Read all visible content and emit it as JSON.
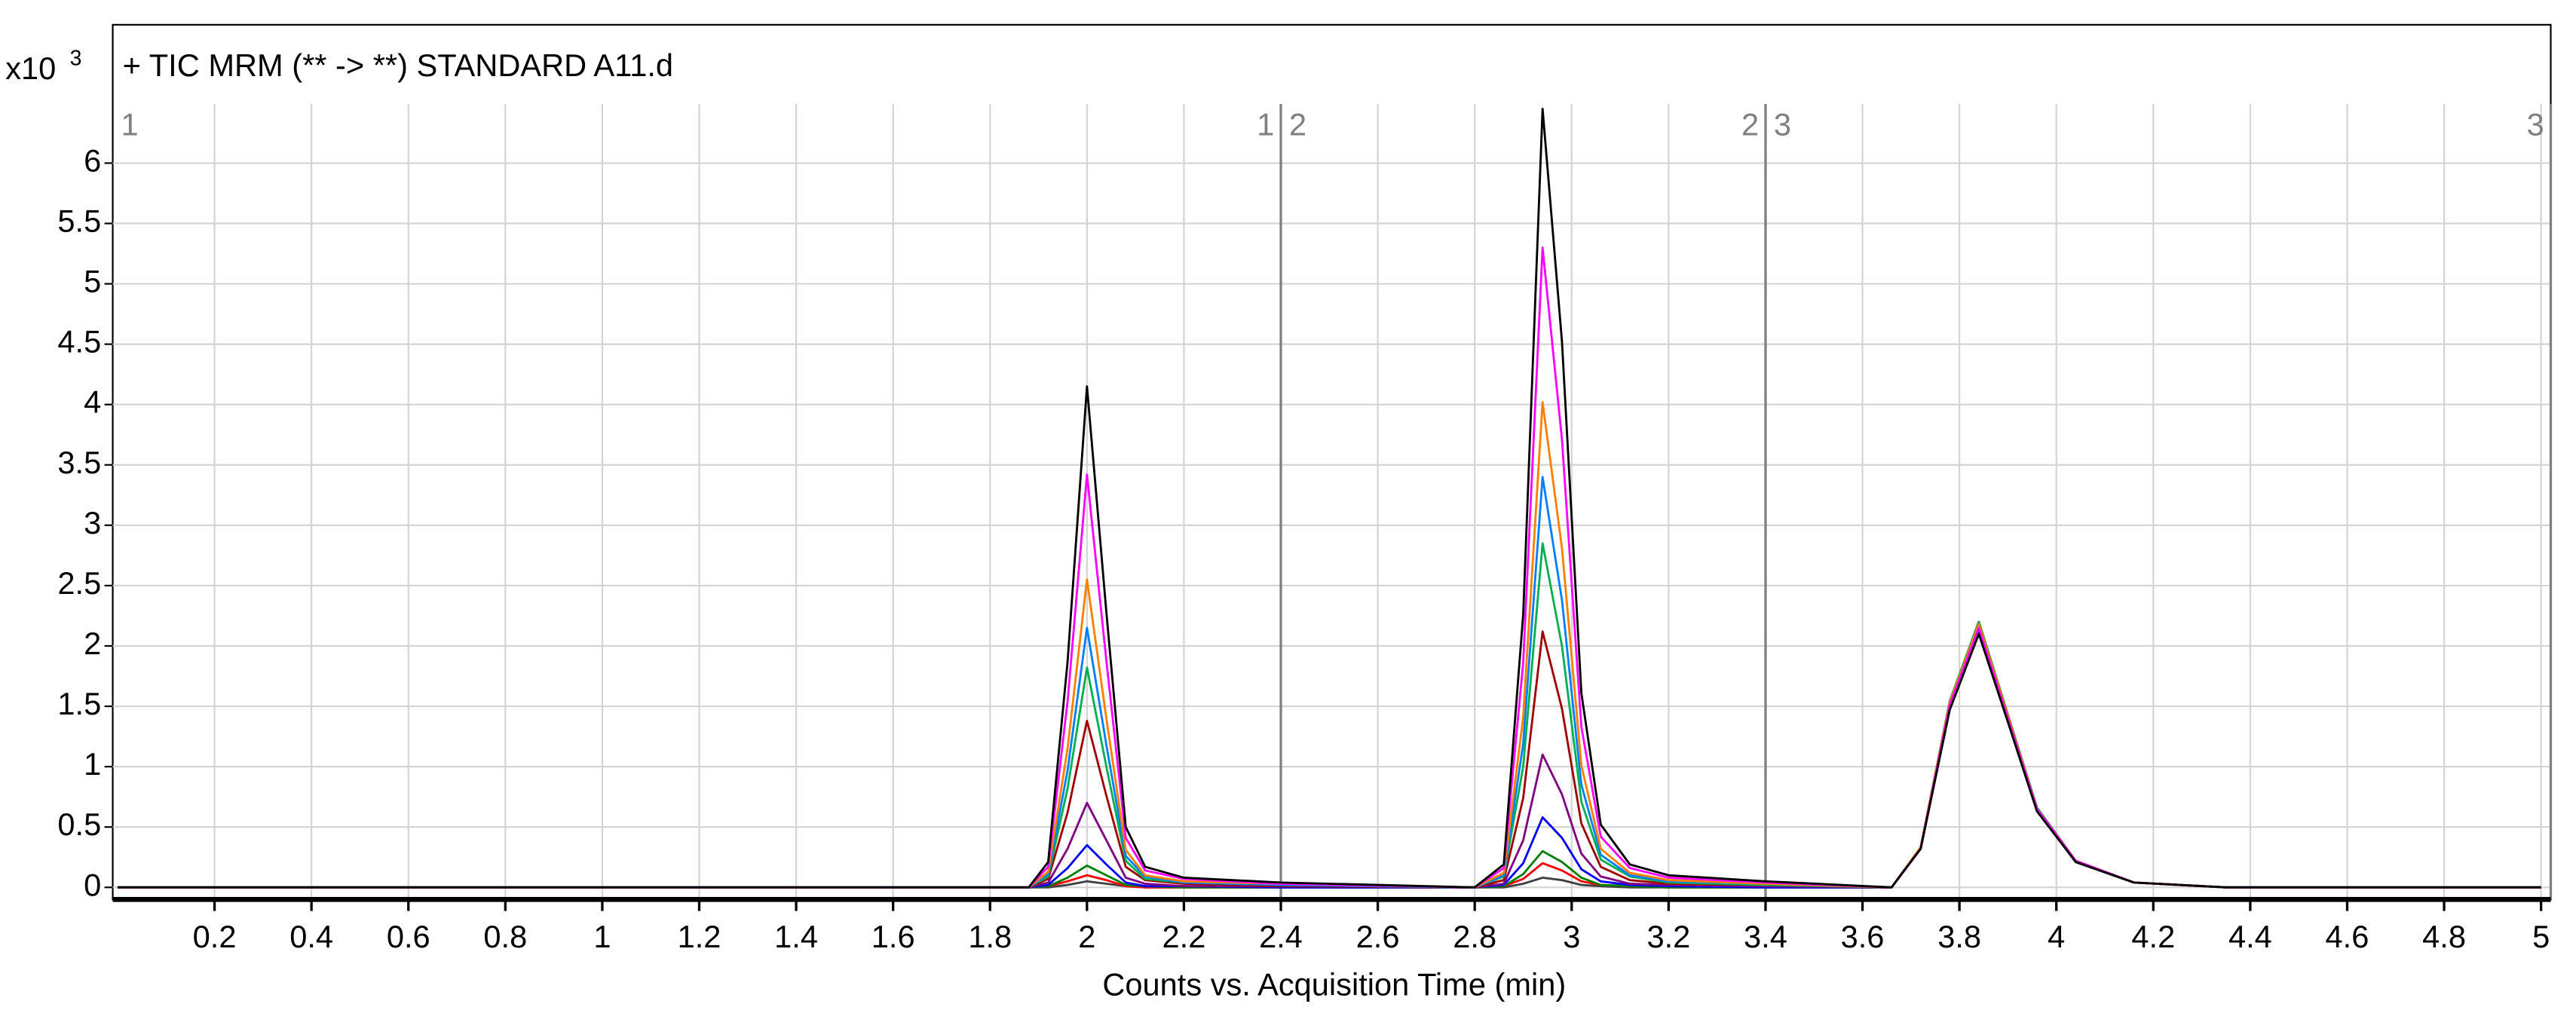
{
  "chart_data": {
    "type": "line",
    "title": "+ TIC MRM (** -> **) STANDARD A11.d",
    "y_scale_label": "x10",
    "y_scale_exponent": "3",
    "x_label": "Counts vs. Acquisition Time (min)",
    "xlim": [
      -0.01,
      5.02
    ],
    "ylim": [
      -0.1,
      6.49
    ],
    "xticks": [
      0.2,
      0.4,
      0.6,
      0.8,
      1,
      1.2,
      1.4,
      1.6,
      1.8,
      2,
      2.2,
      2.4,
      2.6,
      2.8,
      3,
      3.2,
      3.4,
      3.6,
      3.8,
      4,
      4.2,
      4.4,
      4.6,
      4.8,
      5
    ],
    "yticks": [
      0,
      0.5,
      1,
      1.5,
      2,
      2.5,
      3,
      3.5,
      4,
      4.5,
      5,
      5.5,
      6
    ],
    "grid": true,
    "segments": [
      {
        "label": "1",
        "start": -0.01,
        "end": 2.4
      },
      {
        "label": "2",
        "start": 2.4,
        "end": 3.4
      },
      {
        "label": "3",
        "start": 3.4,
        "end": 5.02
      }
    ],
    "x": [
      0,
      1.88,
      1.92,
      1.96,
      2.0,
      2.04,
      2.08,
      2.12,
      2.2,
      2.4,
      2.8,
      2.86,
      2.9,
      2.94,
      2.98,
      3.02,
      3.06,
      3.12,
      3.2,
      3.4,
      3.66,
      3.72,
      3.78,
      3.84,
      3.9,
      3.96,
      4.04,
      4.16,
      4.35,
      5
    ],
    "series": [
      {
        "color": "#000000",
        "values": [
          0,
          0,
          0.21,
          1.87,
          4.15,
          2.28,
          0.5,
          0.17,
          0.08,
          0.04,
          0,
          0.19,
          2.26,
          6.45,
          4.52,
          1.61,
          0.52,
          0.19,
          0.1,
          0.05,
          0,
          0.32,
          1.47,
          2.1,
          1.37,
          0.63,
          0.21,
          0.04,
          0,
          0
        ]
      },
      {
        "color": "#ff00ff",
        "values": [
          0,
          0,
          0.17,
          1.54,
          3.42,
          1.88,
          0.41,
          0.14,
          0.07,
          0.03,
          0,
          0.16,
          1.86,
          5.3,
          3.71,
          1.33,
          0.42,
          0.16,
          0.08,
          0.04,
          0,
          0.32,
          1.51,
          2.15,
          1.4,
          0.65,
          0.22,
          0.04,
          0,
          0
        ]
      },
      {
        "color": "#ff8000",
        "values": [
          0,
          0,
          0.13,
          1.15,
          2.55,
          1.4,
          0.31,
          0.1,
          0.05,
          0.03,
          0,
          0.12,
          1.41,
          4.02,
          2.81,
          1.01,
          0.32,
          0.12,
          0.06,
          0.03,
          0,
          0.33,
          1.53,
          2.18,
          1.42,
          0.65,
          0.22,
          0.04,
          0,
          0
        ]
      },
      {
        "color": "#0080ff",
        "values": [
          0,
          0,
          0.11,
          0.97,
          2.15,
          1.18,
          0.26,
          0.09,
          0.04,
          0.02,
          0,
          0.1,
          1.19,
          3.4,
          2.38,
          0.85,
          0.27,
          0.1,
          0.05,
          0.03,
          0,
          0.32,
          1.51,
          2.15,
          1.4,
          0.65,
          0.22,
          0.04,
          0,
          0
        ]
      },
      {
        "color": "#00b050",
        "values": [
          0,
          0,
          0.09,
          0.82,
          1.82,
          1.0,
          0.22,
          0.07,
          0.04,
          0.02,
          0,
          0.09,
          1.0,
          2.85,
          2.0,
          0.71,
          0.23,
          0.09,
          0.04,
          0.02,
          0,
          0.33,
          1.54,
          2.2,
          1.43,
          0.66,
          0.22,
          0.04,
          0,
          0
        ]
      },
      {
        "color": "#a00000",
        "values": [
          0,
          0,
          0.07,
          0.62,
          1.38,
          0.76,
          0.17,
          0.06,
          0.03,
          0.01,
          0,
          0.06,
          0.74,
          2.12,
          1.48,
          0.53,
          0.17,
          0.06,
          0.03,
          0.02,
          0,
          0.33,
          1.54,
          2.2,
          1.43,
          0.66,
          0.22,
          0.04,
          0,
          0
        ]
      },
      {
        "color": "#800080",
        "values": [
          0,
          0,
          0.04,
          0.32,
          0.7,
          0.39,
          0.08,
          0.03,
          0.01,
          0.01,
          0,
          0.03,
          0.39,
          1.1,
          0.77,
          0.28,
          0.09,
          0.03,
          0.02,
          0.01,
          0,
          0.32,
          1.51,
          2.15,
          1.4,
          0.65,
          0.22,
          0.04,
          0,
          0
        ]
      },
      {
        "color": "#0000ff",
        "values": [
          0,
          0,
          0.02,
          0.16,
          0.35,
          0.19,
          0.04,
          0.01,
          0.01,
          0,
          0,
          0.02,
          0.2,
          0.58,
          0.41,
          0.15,
          0.05,
          0.02,
          0.01,
          0,
          0,
          0.32,
          1.48,
          2.12,
          1.38,
          0.64,
          0.21,
          0.04,
          0,
          0
        ]
      },
      {
        "color": "#008000",
        "values": [
          0,
          0,
          0.01,
          0.08,
          0.18,
          0.1,
          0.02,
          0.01,
          0,
          0,
          0,
          0.01,
          0.11,
          0.3,
          0.21,
          0.08,
          0.02,
          0.01,
          0,
          0,
          0,
          0.33,
          1.53,
          2.18,
          1.42,
          0.65,
          0.22,
          0.04,
          0,
          0
        ]
      },
      {
        "color": "#ff0000",
        "values": [
          0,
          0,
          0.01,
          0.05,
          0.1,
          0.06,
          0.01,
          0,
          0,
          0,
          0,
          0.01,
          0.07,
          0.2,
          0.14,
          0.05,
          0.02,
          0.01,
          0,
          0,
          0,
          0.33,
          1.54,
          2.2,
          1.43,
          0.66,
          0.22,
          0.04,
          0,
          0
        ]
      },
      {
        "color": "#404040",
        "values": [
          0,
          0,
          0,
          0.02,
          0.05,
          0.03,
          0.01,
          0,
          0,
          0,
          0,
          0,
          0.03,
          0.08,
          0.06,
          0.02,
          0.01,
          0,
          0,
          0,
          0,
          0.32,
          1.48,
          2.12,
          1.38,
          0.64,
          0.21,
          0.04,
          0,
          0
        ]
      }
    ]
  }
}
